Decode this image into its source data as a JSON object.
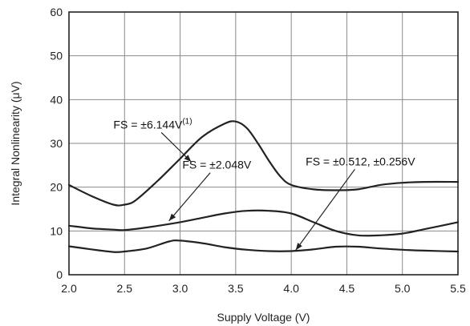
{
  "chart_data": {
    "type": "line",
    "title": "",
    "xlabel": "Supply Voltage (V)",
    "ylabel": "Integral Nonlinearity (μV)",
    "xlim": [
      2.0,
      5.5
    ],
    "ylim": [
      0,
      60
    ],
    "x_ticks": [
      2.0,
      2.5,
      3.0,
      3.5,
      4.0,
      4.5,
      5.0,
      5.5
    ],
    "x_tick_labels": [
      "2.0",
      "2.5",
      "3.0",
      "3.5",
      "4.0",
      "4.5",
      "5.0",
      "5.5"
    ],
    "y_ticks": [
      0,
      10,
      20,
      30,
      40,
      50,
      60
    ],
    "y_tick_labels": [
      "0",
      "10",
      "20",
      "30",
      "40",
      "50",
      "60"
    ],
    "grid": true,
    "series": [
      {
        "x": [
          2.0,
          2.2,
          2.4,
          2.5,
          2.6,
          2.8,
          3.0,
          3.2,
          3.4,
          3.5,
          3.6,
          3.7,
          3.8,
          3.9,
          4.0,
          4.2,
          4.4,
          4.6,
          4.8,
          5.0,
          5.2,
          5.5
        ],
        "values": [
          20.5,
          18.0,
          16.0,
          16.0,
          17.0,
          21.5,
          26.5,
          31.5,
          34.5,
          35.0,
          33.5,
          30.0,
          26.0,
          22.5,
          20.5,
          19.5,
          19.3,
          19.5,
          20.5,
          21.0,
          21.2,
          21.2
        ]
      },
      {
        "x": [
          2.0,
          2.2,
          2.4,
          2.5,
          2.7,
          3.0,
          3.2,
          3.4,
          3.6,
          3.8,
          4.0,
          4.2,
          4.4,
          4.6,
          4.8,
          5.0,
          5.2,
          5.5
        ],
        "values": [
          11.2,
          10.6,
          10.3,
          10.2,
          10.8,
          12.0,
          13.0,
          14.0,
          14.6,
          14.6,
          14.0,
          12.0,
          10.0,
          9.0,
          9.0,
          9.4,
          10.4,
          12.0
        ]
      },
      {
        "x": [
          2.0,
          2.2,
          2.4,
          2.5,
          2.7,
          2.9,
          3.0,
          3.2,
          3.4,
          3.6,
          3.8,
          4.0,
          4.2,
          4.4,
          4.6,
          4.8,
          5.0,
          5.2,
          5.5
        ],
        "values": [
          6.5,
          5.8,
          5.2,
          5.3,
          6.0,
          7.6,
          7.8,
          7.2,
          6.3,
          5.7,
          5.4,
          5.4,
          5.8,
          6.4,
          6.4,
          6.0,
          5.7,
          5.5,
          5.3
        ]
      }
    ],
    "annotations": [
      {
        "text": "FS = ±6.144V",
        "superscript": "(1)",
        "label_x": 2.4,
        "label_y": 33.4,
        "point_x": 3.1,
        "point_y": 25.8
      },
      {
        "text": "FS = ±2.048V",
        "superscript": "",
        "label_x": 3.02,
        "label_y": 24.2,
        "point_x": 2.9,
        "point_y": 12.3
      },
      {
        "text": "FS = ±0.512, ±0.256V",
        "superscript": "",
        "label_x": 4.13,
        "label_y": 25.0,
        "point_x": 4.04,
        "point_y": 5.6
      }
    ]
  }
}
